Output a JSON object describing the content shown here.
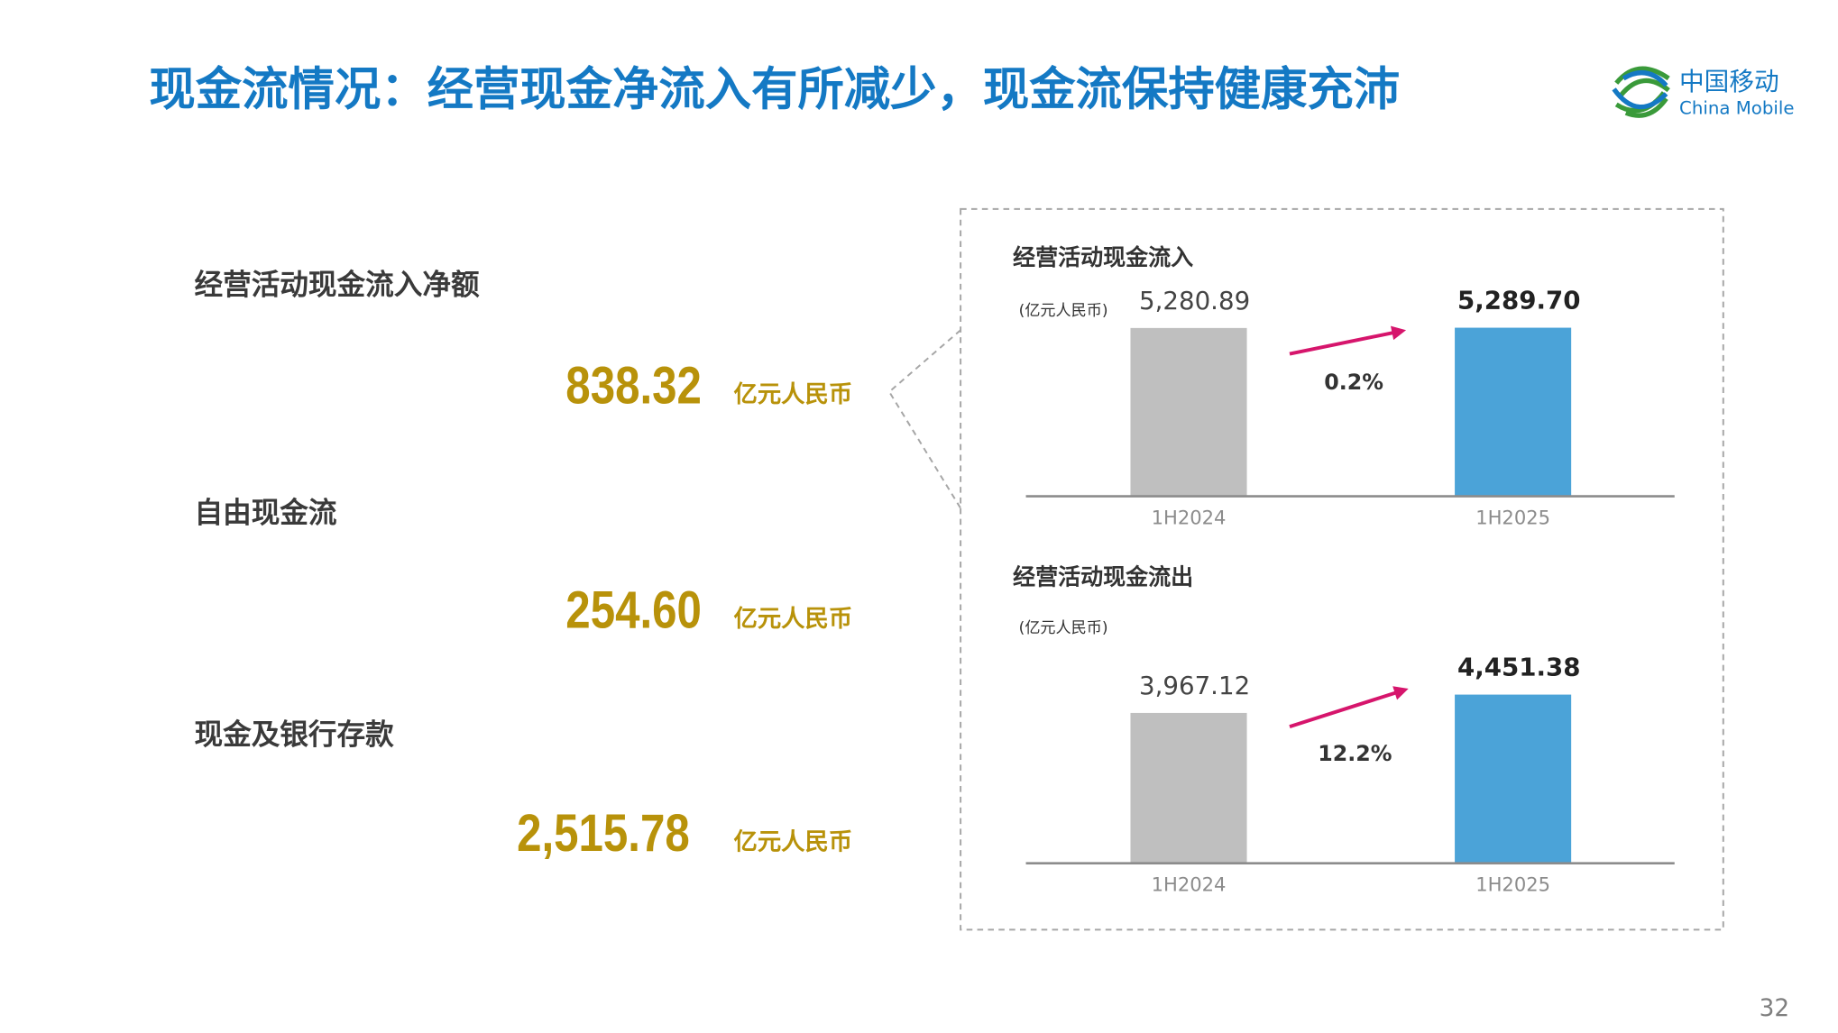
{
  "header": {
    "title": "现金流情况：经营现金净流入有所减少，现金流保持健康充沛",
    "logo_cn": "中国移动",
    "logo_en": "China Mobile"
  },
  "metrics": [
    {
      "name": "经营活动现金流入净额",
      "value": "838.32",
      "unit": "亿元人民币"
    },
    {
      "name": "自由现金流",
      "value": "254.60",
      "unit": "亿元人民币"
    },
    {
      "name": "现金及银行存款",
      "value": "2,515.78",
      "unit": "亿元人民币"
    }
  ],
  "chart_data": [
    {
      "type": "bar",
      "title": "经营活动现金流入",
      "unit": "(亿元人民币)",
      "categories": [
        "1H2024",
        "1H2025"
      ],
      "values": [
        5280.89,
        5289.7
      ],
      "value_labels": [
        "5,280.89",
        "5,289.70"
      ],
      "colors": [
        "#bfbfbf",
        "#4ba3d8"
      ],
      "annotation": "0.2%"
    },
    {
      "type": "bar",
      "title": "经营活动现金流出",
      "unit": "(亿元人民币)",
      "categories": [
        "1H2024",
        "1H2025"
      ],
      "values": [
        3967.12,
        4451.38
      ],
      "value_labels": [
        "3,967.12",
        "4,451.38"
      ],
      "colors": [
        "#bfbfbf",
        "#4ba3d8"
      ],
      "annotation": "12.2%"
    }
  ],
  "page_number": "32"
}
